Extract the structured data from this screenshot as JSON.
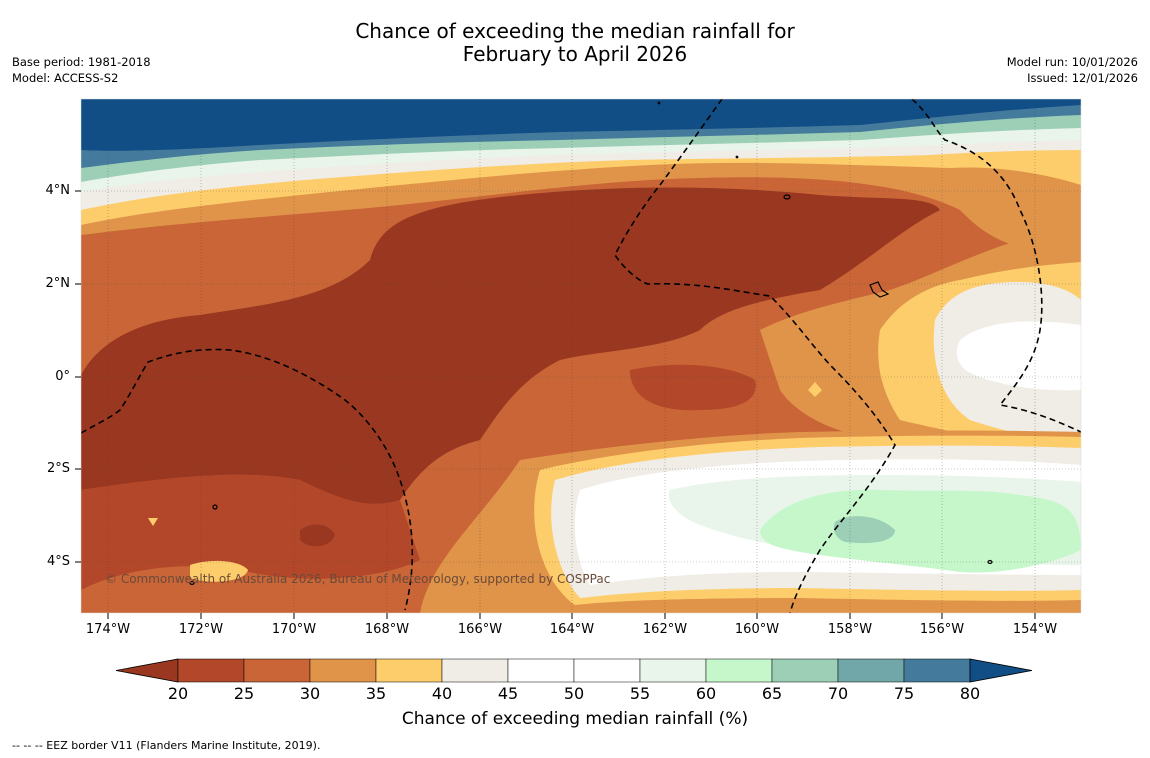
{
  "title": {
    "line1": "Chance of exceeding the median rainfall for",
    "line2": "February to April 2026"
  },
  "meta_left": {
    "base_period": "Base period: 1981-2018",
    "model": "Model: ACCESS-S2"
  },
  "meta_right": {
    "model_run": "Model run: 10/01/2026",
    "issued": "Issued: 12/01/2026"
  },
  "map": {
    "lat_labels": [
      "4°N",
      "2°N",
      "0°",
      "2°S",
      "4°S"
    ],
    "lon_labels": [
      "174°W",
      "172°W",
      "170°W",
      "168°W",
      "166°W",
      "164°W",
      "162°W",
      "160°W",
      "158°W",
      "156°W",
      "154°W"
    ],
    "copyright": "© Commonwealth of Australia 2026, Bureau of Meteorology, supported by COSPPac",
    "eez_style": "dashed"
  },
  "colorbar": {
    "ticks": [
      "20",
      "25",
      "30",
      "35",
      "40",
      "45",
      "50",
      "55",
      "60",
      "65",
      "70",
      "75",
      "80"
    ],
    "colors": [
      "#9a3720",
      "#b3472a",
      "#c96536",
      "#e0944a",
      "#fecd6b",
      "#f0ece6",
      "#ffffff",
      "#ffffff",
      "#e9f5ea",
      "#c6f7cb",
      "#9ccfb6",
      "#71a7a8",
      "#447a9c",
      "#124e86"
    ],
    "label": "Chance of exceeding median rainfall (%)"
  },
  "footer": "--  --  -- EEZ border V11 (Flanders Marine Institute, 2019)."
}
